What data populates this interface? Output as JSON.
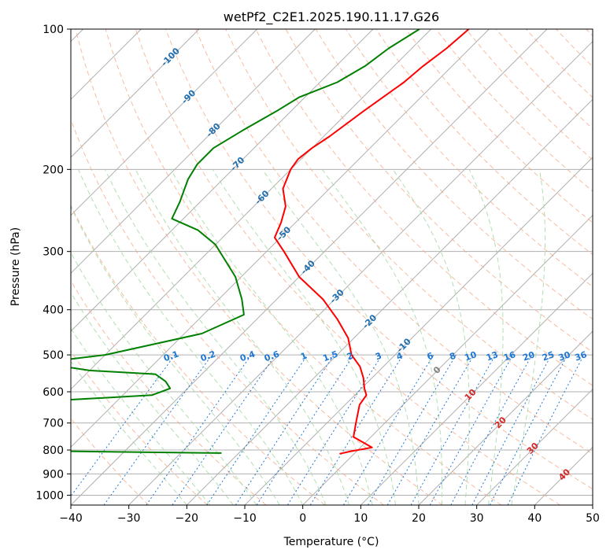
{
  "chart_data": {
    "type": "line",
    "title": "wetPf2_C2E1.2025.190.11.17.G26",
    "xlabel": "Temperature (°C)",
    "ylabel": "Pressure (hPa)",
    "xlim": [
      -40,
      50
    ],
    "ylim": [
      1050,
      100
    ],
    "y_scale": "log",
    "grid": true,
    "x_ticks": [
      -40,
      -30,
      -20,
      -10,
      0,
      10,
      20,
      30,
      40,
      50
    ],
    "y_ticks": [
      100,
      200,
      300,
      400,
      500,
      600,
      700,
      800,
      900,
      1000
    ],
    "colors": {
      "temperature": "#ff0000",
      "dewpoint": "#008000",
      "isotherm": "#b0b0b0",
      "dry_adiabat": "#f4a582",
      "moist_adiabat": "#a6d8a6",
      "mixing_ratio": "#1f77d4",
      "temp_label": "#1f6fb0",
      "warm_label": "#d62728"
    },
    "series": [
      {
        "key": "temperature",
        "values": [
          [
            -53.5,
            100
          ],
          [
            -54,
            110
          ],
          [
            -55,
            120
          ],
          [
            -55.5,
            130
          ],
          [
            -57.5,
            150
          ],
          [
            -59,
            170
          ],
          [
            -60,
            180
          ],
          [
            -60.5,
            190
          ],
          [
            -60,
            200
          ],
          [
            -58,
            220
          ],
          [
            -54.5,
            240
          ],
          [
            -52.5,
            260
          ],
          [
            -51,
            280
          ],
          [
            -47,
            300
          ],
          [
            -40,
            340
          ],
          [
            -32,
            380
          ],
          [
            -26,
            420
          ],
          [
            -21,
            460
          ],
          [
            -17.5,
            500
          ],
          [
            -14,
            530
          ],
          [
            -11.5,
            560
          ],
          [
            -9.5,
            590
          ],
          [
            -8,
            610
          ],
          [
            -7.5,
            640
          ],
          [
            -5,
            700
          ],
          [
            -3,
            750
          ],
          [
            2,
            790
          ],
          [
            -1,
            805
          ],
          [
            -2.5,
            815
          ]
        ]
      },
      {
        "key": "dewpoint",
        "values": [
          [
            -62,
            100
          ],
          [
            -64,
            110
          ],
          [
            -65,
            120
          ],
          [
            -67,
            130
          ],
          [
            -71,
            140
          ],
          [
            -72.5,
            150
          ],
          [
            -75,
            165
          ],
          [
            -77,
            180
          ],
          [
            -77,
            195
          ],
          [
            -76,
            210
          ],
          [
            -73.5,
            235
          ],
          [
            -72,
            255
          ],
          [
            -65.5,
            270
          ],
          [
            -60,
            290
          ],
          [
            -51,
            340
          ],
          [
            -46,
            380
          ],
          [
            -43,
            410
          ],
          [
            -47,
            450
          ],
          [
            -60,
            500
          ],
          [
            -70,
            520
          ],
          [
            -60,
            540
          ],
          [
            -48,
            550
          ],
          [
            -45,
            570
          ],
          [
            -43,
            590
          ],
          [
            -45,
            610
          ],
          [
            -64,
            630
          ],
          [
            -80,
            650
          ],
          [
            -88,
            680
          ],
          [
            -85,
            710
          ],
          [
            -80,
            740
          ],
          [
            -71,
            770
          ],
          [
            -73,
            800
          ],
          [
            -50,
            805
          ],
          [
            -23,
            812
          ]
        ]
      }
    ],
    "mixing_ratio_labels": [
      "0.1",
      "0.2",
      "0.4",
      "0.6",
      "1",
      "1.5",
      "2",
      "3",
      "4",
      "6",
      "8",
      "10",
      "13",
      "16",
      "20",
      "25",
      "30",
      "36"
    ],
    "mixing_ratio_values": [
      0.1,
      0.2,
      0.4,
      0.6,
      1,
      1.5,
      2,
      3,
      4,
      6,
      8,
      10,
      13,
      16,
      20,
      25,
      30,
      36
    ],
    "isotherm_labels": [
      {
        "text": "-100",
        "t": -100,
        "p": 115
      },
      {
        "text": "-90",
        "t": -90,
        "p": 140
      },
      {
        "text": "-80",
        "t": -80,
        "p": 165
      },
      {
        "text": "-70",
        "t": -70,
        "p": 195
      },
      {
        "text": "-60",
        "t": -60,
        "p": 230
      },
      {
        "text": "-50",
        "t": -50,
        "p": 275
      },
      {
        "text": "-40",
        "t": -40,
        "p": 325
      },
      {
        "text": "-30",
        "t": -30,
        "p": 375
      },
      {
        "text": "-20",
        "t": -20,
        "p": 425
      },
      {
        "text": "-10",
        "t": -10,
        "p": 478
      },
      {
        "text": "0",
        "t": 0,
        "p": 540
      },
      {
        "text": "10",
        "t": 10,
        "p": 610
      },
      {
        "text": "20",
        "t": 20,
        "p": 700
      },
      {
        "text": "30",
        "t": 30,
        "p": 795
      },
      {
        "text": "40",
        "t": 40,
        "p": 905
      }
    ]
  }
}
